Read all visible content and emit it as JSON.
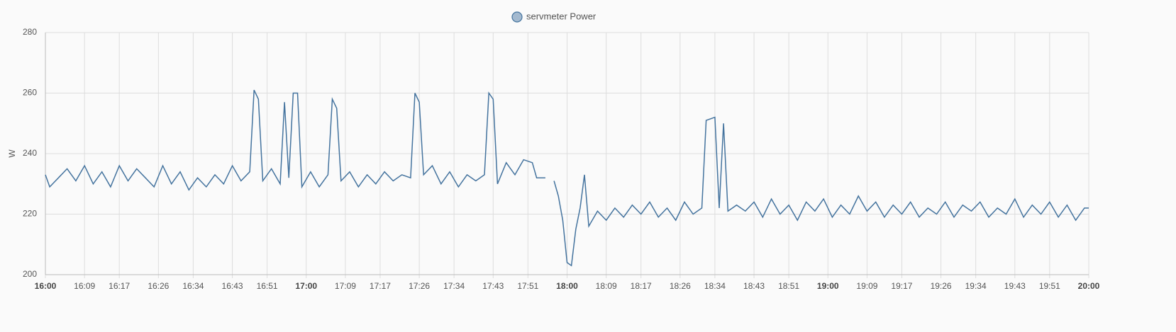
{
  "chart_data": {
    "type": "line",
    "y_label": "W",
    "x": [
      "16:00",
      "16:01",
      "16:03",
      "16:05",
      "16:07",
      "16:09",
      "16:11",
      "16:13",
      "16:15",
      "16:17",
      "16:19",
      "16:21",
      "16:23",
      "16:25",
      "16:27",
      "16:29",
      "16:31",
      "16:33",
      "16:35",
      "16:37",
      "16:39",
      "16:41",
      "16:43",
      "16:45",
      "16:47",
      "16:48",
      "16:49",
      "16:50",
      "16:52",
      "16:54",
      "16:55",
      "16:56",
      "16:57",
      "16:58",
      "16:59",
      "17:01",
      "17:03",
      "17:05",
      "17:06",
      "17:07",
      "17:08",
      "17:10",
      "17:12",
      "17:14",
      "17:16",
      "17:18",
      "17:20",
      "17:22",
      "17:24",
      "17:25",
      "17:26",
      "17:27",
      "17:29",
      "17:31",
      "17:33",
      "17:35",
      "17:37",
      "17:39",
      "17:41",
      "17:42",
      "17:43",
      "17:44",
      "17:46",
      "17:48",
      "17:50",
      "17:52",
      "17:53",
      "17:55",
      "17:56",
      "17:57",
      "17:58",
      "17:59",
      "18:00",
      "18:01",
      "18:02",
      "18:03",
      "18:04",
      "18:05",
      "18:07",
      "18:09",
      "18:11",
      "18:13",
      "18:15",
      "18:17",
      "18:19",
      "18:21",
      "18:23",
      "18:25",
      "18:27",
      "18:29",
      "18:31",
      "18:32",
      "18:34",
      "18:35",
      "18:36",
      "18:37",
      "18:39",
      "18:41",
      "18:43",
      "18:45",
      "18:47",
      "18:49",
      "18:51",
      "18:53",
      "18:55",
      "18:57",
      "18:59",
      "19:01",
      "19:03",
      "19:05",
      "19:07",
      "19:09",
      "19:11",
      "19:13",
      "19:15",
      "19:17",
      "19:19",
      "19:21",
      "19:23",
      "19:25",
      "19:27",
      "19:29",
      "19:31",
      "19:33",
      "19:35",
      "19:37",
      "19:39",
      "19:41",
      "19:43",
      "19:45",
      "19:47",
      "19:49",
      "19:51",
      "19:53",
      "19:55",
      "19:57",
      "19:59",
      "20:00"
    ],
    "series": [
      {
        "name": "servmeter Power",
        "color": "#44739e",
        "values": [
          233,
          229,
          232,
          235,
          231,
          236,
          230,
          234,
          229,
          236,
          231,
          235,
          232,
          229,
          236,
          230,
          234,
          228,
          232,
          229,
          233,
          230,
          236,
          231,
          234,
          261,
          258,
          231,
          235,
          230,
          257,
          232,
          260,
          260,
          229,
          234,
          229,
          233,
          258,
          255,
          231,
          234,
          229,
          233,
          230,
          234,
          231,
          233,
          232,
          260,
          257,
          233,
          236,
          230,
          234,
          229,
          233,
          231,
          233,
          260,
          258,
          230,
          237,
          233,
          238,
          237,
          232,
          232,
          null,
          231,
          226,
          218,
          204,
          203,
          215,
          222,
          233,
          216,
          221,
          218,
          222,
          219,
          223,
          220,
          224,
          219,
          222,
          218,
          224,
          220,
          222,
          251,
          252,
          222,
          250,
          221,
          223,
          221,
          224,
          219,
          225,
          220,
          223,
          218,
          224,
          221,
          225,
          219,
          223,
          220,
          226,
          221,
          224,
          219,
          223,
          220,
          224,
          219,
          222,
          220,
          224,
          219,
          223,
          221,
          224,
          219,
          222,
          220,
          225,
          219,
          223,
          220,
          224,
          219,
          223,
          218,
          222,
          222
        ]
      }
    ],
    "xlim": [
      "16:00",
      "20:00"
    ],
    "xticks": [
      "16:00",
      "16:09",
      "16:17",
      "16:26",
      "16:34",
      "16:43",
      "16:51",
      "17:00",
      "17:09",
      "17:17",
      "17:26",
      "17:34",
      "17:43",
      "17:51",
      "18:00",
      "18:09",
      "18:17",
      "18:26",
      "18:34",
      "18:43",
      "18:51",
      "19:00",
      "19:09",
      "19:17",
      "19:26",
      "19:34",
      "19:43",
      "19:51",
      "20:00"
    ],
    "ylim": [
      200,
      280
    ],
    "yticks": [
      200,
      220,
      240,
      260,
      280
    ],
    "grid": true
  }
}
